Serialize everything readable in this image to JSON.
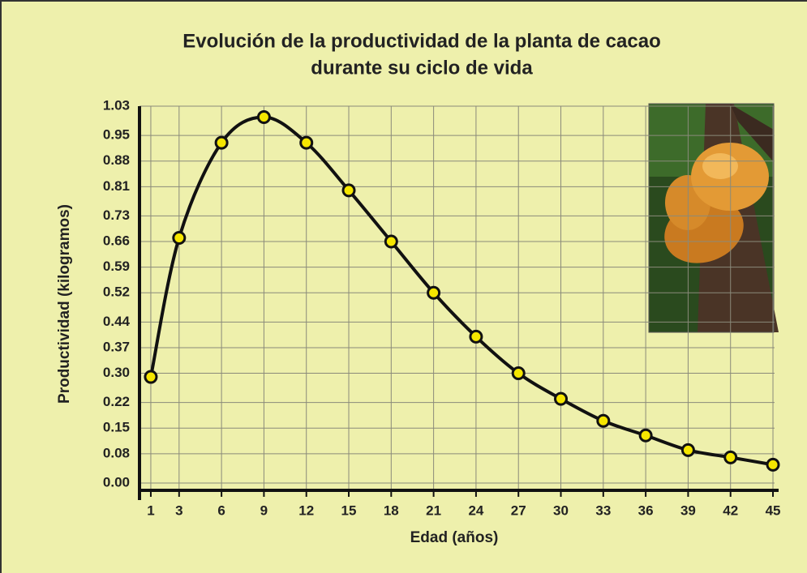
{
  "chart_data": {
    "type": "line",
    "title": [
      "Evolución de la productividad de la planta de cacao",
      "durante su ciclo de vida"
    ],
    "x_label": "Edad (años)",
    "y_label": "Productividad (kilogramos)",
    "x": [
      1,
      3,
      6,
      9,
      12,
      15,
      18,
      21,
      24,
      27,
      30,
      33,
      36,
      39,
      42,
      45
    ],
    "series": [
      {
        "color": "#111111",
        "marker_color": "#f5e600",
        "values": [
          0.29,
          0.67,
          0.93,
          1.0,
          0.93,
          0.8,
          0.66,
          0.52,
          0.4,
          0.3,
          0.23,
          0.17,
          0.13,
          0.09,
          0.07,
          0.05
        ]
      }
    ],
    "xlim": [
      0.2,
      45.4
    ],
    "xticks": [
      1,
      3,
      6,
      9,
      12,
      15,
      18,
      21,
      24,
      27,
      30,
      33,
      36,
      39,
      42,
      45
    ],
    "ylim": [
      -0.02,
      1.03
    ],
    "yticks": [
      {
        "value": 0,
        "label": "0.00"
      },
      0.08,
      0.15,
      0.22,
      {
        "value": 0.3,
        "label": "0.30"
      },
      0.37,
      0.44,
      0.52,
      0.59,
      0.66,
      0.73,
      0.81,
      0.88,
      0.95,
      1.03
    ],
    "grid": true
  }
}
